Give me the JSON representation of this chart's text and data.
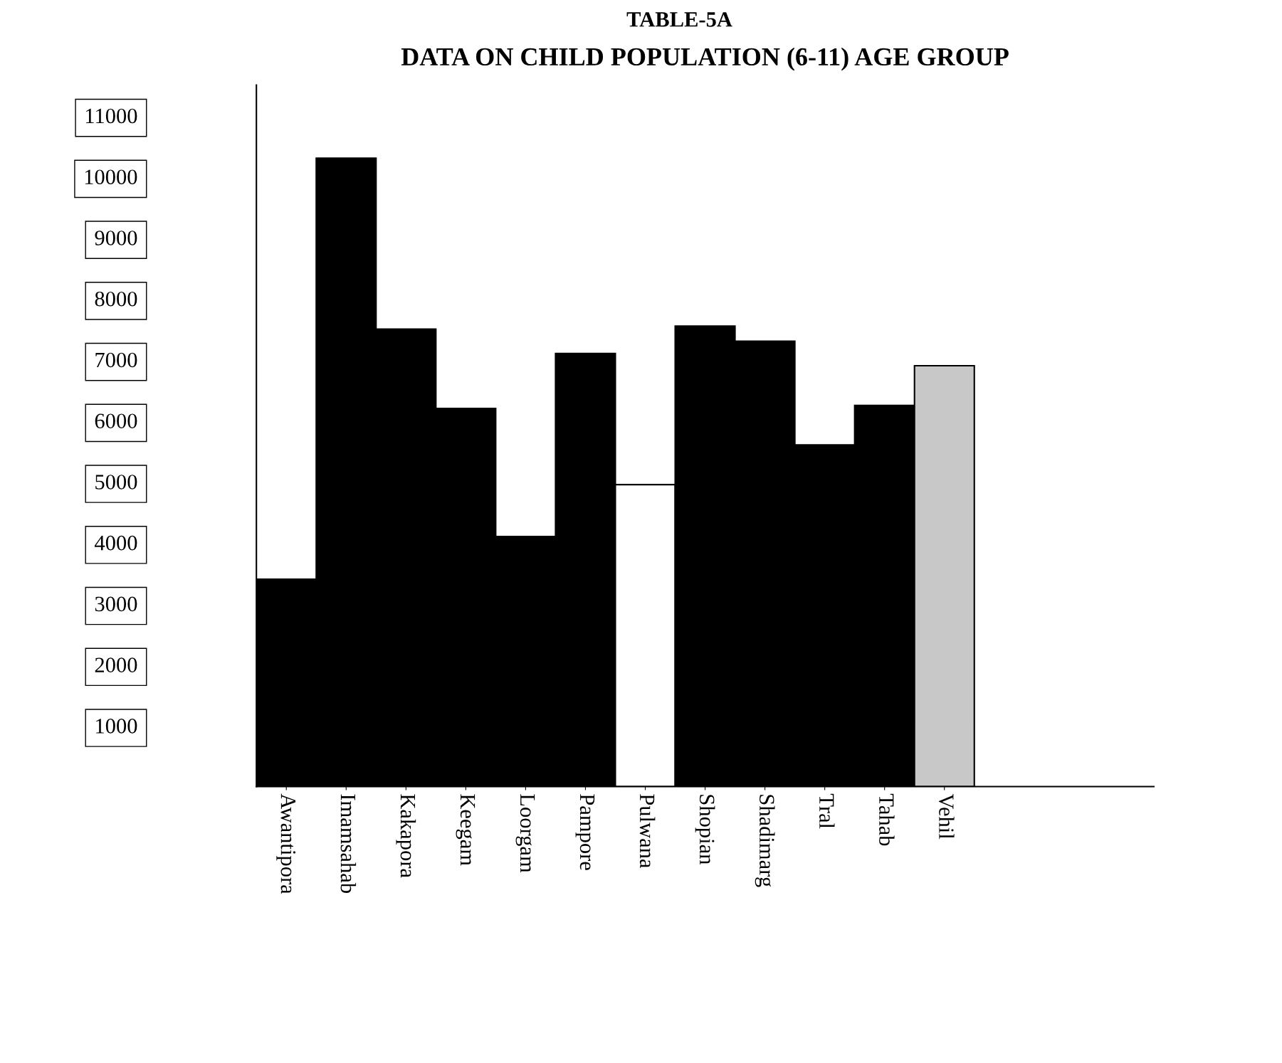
{
  "chart_data": {
    "type": "bar",
    "title": "TABLE-5A",
    "subtitle": "DATA ON CHILD POPULATION (6-11) AGE GROUP",
    "categories": [
      "Awantipora",
      "Imamsahab",
      "Kakapora",
      "Keegam",
      "Loorgam",
      "Pampore",
      "Pulwana",
      "Shopian",
      "Shadimarg",
      "Tral",
      "Tahab",
      "Vehil"
    ],
    "values": [
      3400,
      10300,
      7500,
      6200,
      4100,
      7100,
      4950,
      7550,
      7300,
      5600,
      6250,
      6900
    ],
    "colors": [
      "#000000",
      "#000000",
      "#000000",
      "#000000",
      "#000000",
      "#000000",
      "#ffffff",
      "#000000",
      "#000000",
      "#000000",
      "#000000",
      "#c8c8c8"
    ],
    "ylim": [
      0,
      11500
    ],
    "yticks": [
      1000,
      2000,
      3000,
      4000,
      5000,
      6000,
      7000,
      8000,
      9000,
      10000,
      11000
    ],
    "grid": false,
    "legend": false
  }
}
